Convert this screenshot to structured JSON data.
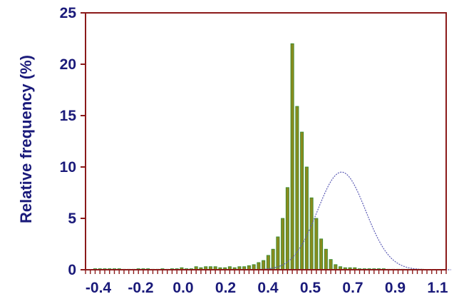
{
  "chart_data": {
    "type": "bar",
    "title": "",
    "xlabel": "",
    "ylabel": "Relative frequency (%)",
    "xlim": [
      -0.4,
      1.1
    ],
    "ylim": [
      0,
      25
    ],
    "x_ticks": [
      -0.4,
      -0.2,
      0.0,
      0.2,
      0.4,
      0.5,
      0.7,
      0.9,
      1.1
    ],
    "x_tick_labels": [
      "-0.4",
      "-0.2",
      "0.0",
      "0.2",
      "0.4",
      "0.5",
      "0.7",
      "0.9",
      "1.1"
    ],
    "y_ticks": [
      0,
      5,
      10,
      15,
      20,
      25
    ],
    "y_tick_labels": [
      "0",
      "5",
      "10",
      "15",
      "20",
      "25"
    ],
    "grid": false,
    "colors": {
      "bar_fill": "#8a8a1e",
      "bar_edge": "#2e8b2e",
      "curve": "#5a5ab4",
      "frame": "#8b1a1a",
      "text": "#1a1a7a"
    },
    "series": [
      {
        "x": [
          -0.36,
          -0.34,
          -0.32,
          -0.3,
          -0.28,
          -0.26,
          -0.24,
          -0.22,
          -0.2,
          -0.18,
          -0.16,
          -0.14,
          -0.12,
          -0.1,
          -0.08,
          -0.06,
          -0.04,
          -0.02,
          0.0,
          0.02,
          0.04,
          0.06,
          0.08,
          0.1,
          0.12,
          0.14,
          0.16,
          0.18,
          0.2,
          0.22,
          0.24,
          0.26,
          0.28,
          0.3,
          0.32,
          0.34,
          0.36,
          0.38,
          0.4,
          0.42,
          0.44,
          0.46,
          0.48,
          0.5,
          0.52,
          0.54,
          0.56,
          0.58,
          0.6,
          0.62,
          0.64,
          0.66,
          0.68,
          0.7,
          0.72,
          0.74,
          0.76,
          0.78,
          0.8,
          0.82,
          0.84,
          0.86,
          0.88,
          0.9,
          0.92,
          0.94,
          0.96,
          0.98,
          1.0
        ],
        "values": [
          0.1,
          0.1,
          0.1,
          0.1,
          0.1,
          0.1,
          0.05,
          0.05,
          0.05,
          0.1,
          0.1,
          0.1,
          0.05,
          0.05,
          0.1,
          0.05,
          0.1,
          0.1,
          0.2,
          0.1,
          0.1,
          0.3,
          0.2,
          0.3,
          0.3,
          0.3,
          0.2,
          0.2,
          0.3,
          0.2,
          0.3,
          0.3,
          0.4,
          0.5,
          0.7,
          0.9,
          1.4,
          2.0,
          3.2,
          5.0,
          8.0,
          22.0,
          15.9,
          13.4,
          10.0,
          7.0,
          5.0,
          3.0,
          2.0,
          1.0,
          0.5,
          0.3,
          0.2,
          0.2,
          0.2,
          0.1,
          0.1,
          0.1,
          0.1,
          0.1,
          0.1,
          0.05,
          0.05,
          0.05,
          0.05,
          0.05,
          0.05,
          0.05,
          0.05
        ]
      }
    ],
    "fit_curve": {
      "type": "normal",
      "mean": 0.665,
      "sd": 0.1,
      "peak": 9.5
    }
  }
}
